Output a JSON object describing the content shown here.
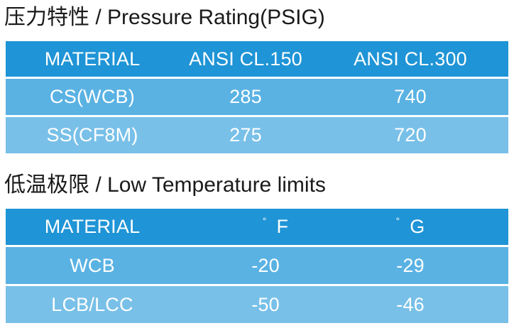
{
  "pressure": {
    "title": "压力特性 / Pressure Rating(PSIG)",
    "headers": [
      "MATERIAL",
      "ANSI CL.150",
      "ANSI CL.300"
    ],
    "rows": [
      [
        "CS(WCB)",
        "285",
        "740"
      ],
      [
        "SS(CF8M)",
        "275",
        "720"
      ]
    ]
  },
  "temperature": {
    "title": "低温极限 / Low Temperature limits",
    "headers": {
      "material": "MATERIAL",
      "degree_symbol": "°",
      "unit_f": "F",
      "unit_g": "G"
    },
    "rows": [
      [
        "WCB",
        "-20",
        "-29"
      ],
      [
        "LCB/LCC",
        "-50",
        "-46"
      ]
    ]
  },
  "colors": {
    "header_row": "#1f94d6",
    "row_a": "#5ab2e3",
    "row_b": "#78c0e8",
    "text_on_blue": "#ffffff",
    "heading_text": "#1a1a1a"
  }
}
